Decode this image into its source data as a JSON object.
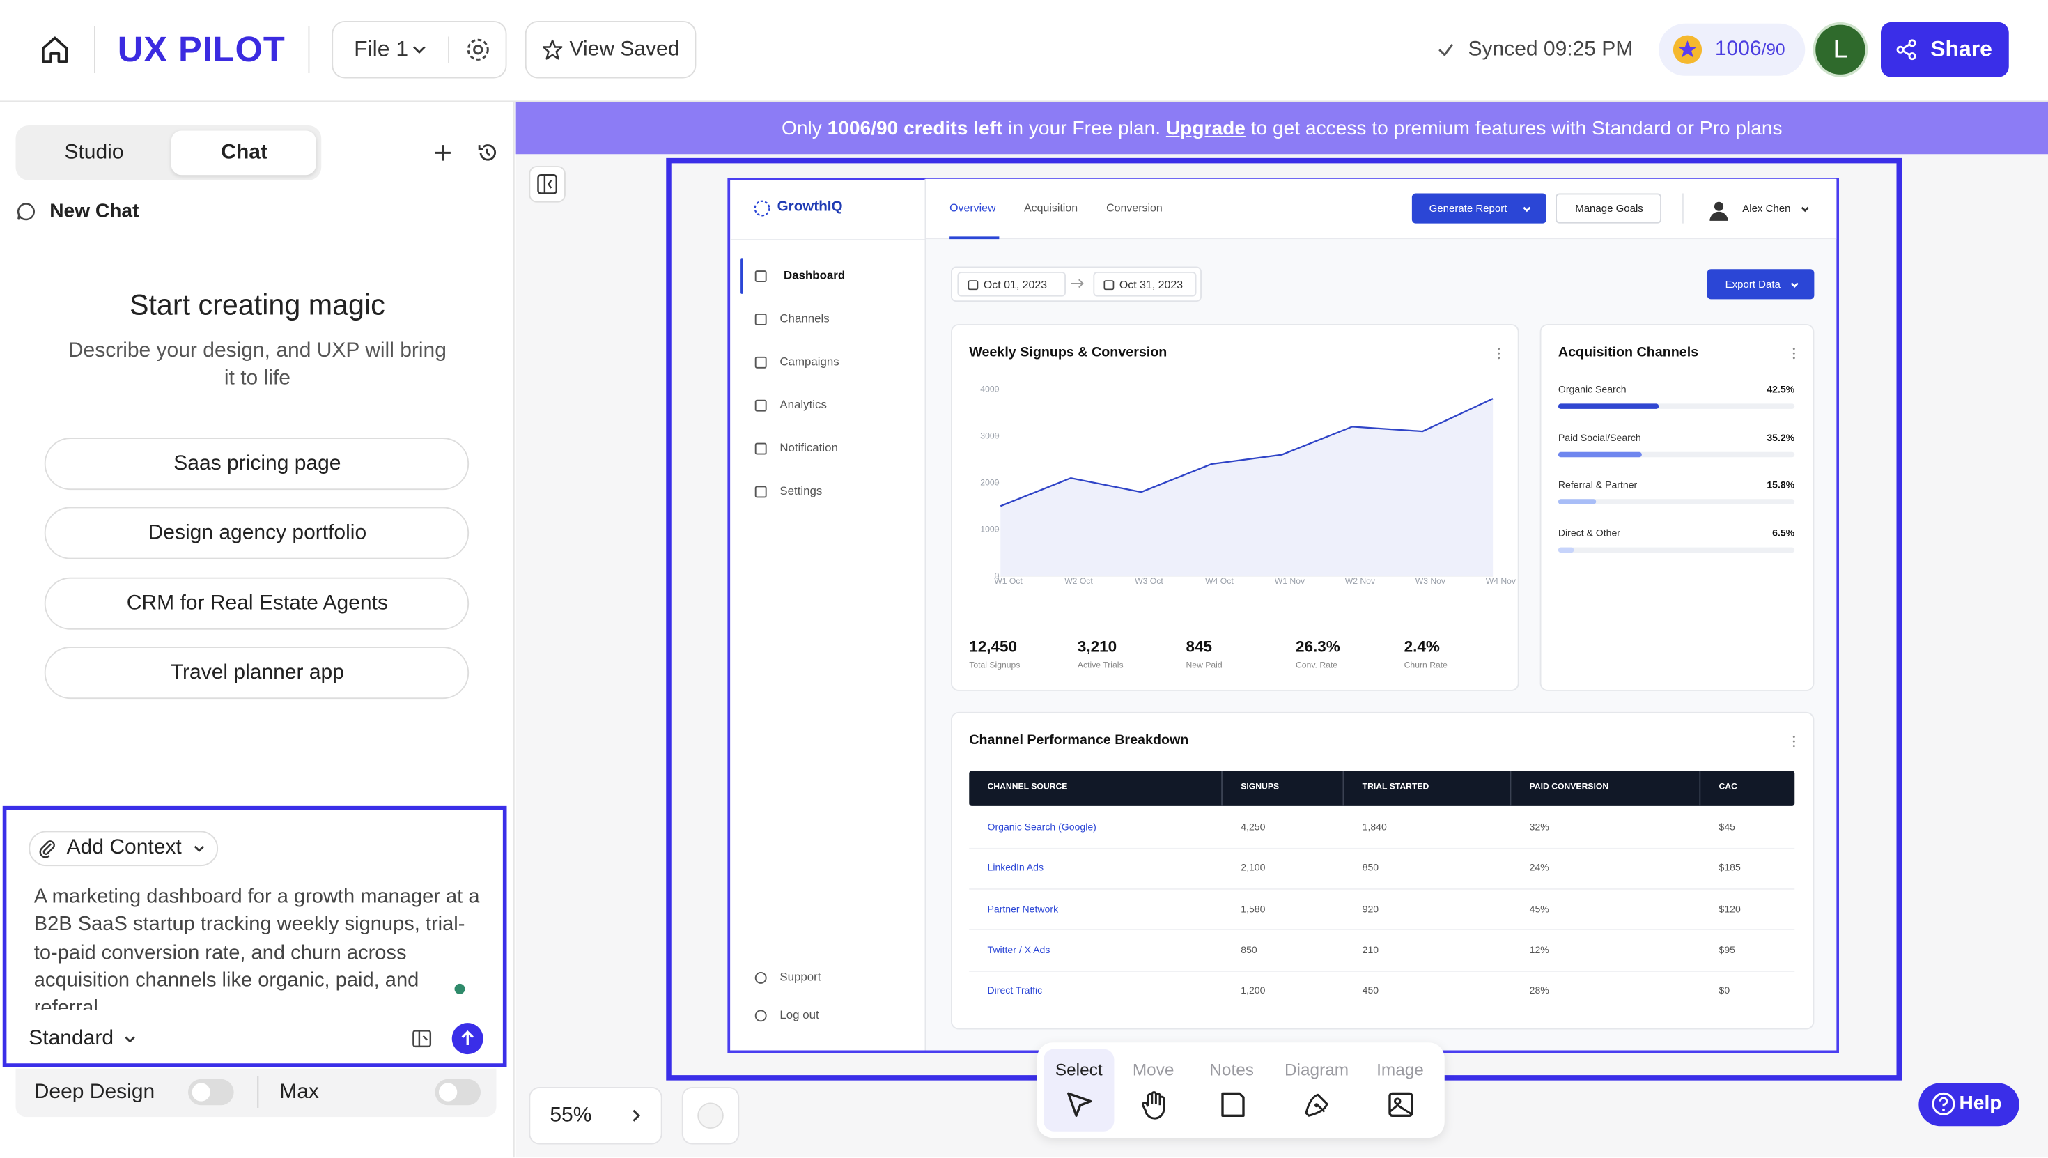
{
  "topbar": {
    "logo": "UX PILOT",
    "file": "File 1",
    "view_saved": "View Saved",
    "synced": "Synced 09:25 PM",
    "credits": "1006",
    "credits_limit": "/90",
    "avatar": "L",
    "share": "Share"
  },
  "sidebar": {
    "tabs": [
      "Studio",
      "Chat"
    ],
    "active_tab": 1,
    "new_chat": "New Chat",
    "heading": "Start creating magic",
    "subheading": "Describe your design, and UXP will bring it to life",
    "suggestions": [
      "Saas pricing page",
      "Design agency portfolio",
      "CRM for Real Estate Agents",
      "Travel planner app"
    ],
    "add_context": "Add Context",
    "prompt": "A marketing dashboard for a growth manager at a B2B SaaS startup tracking weekly signups, trial-to-paid conversion rate, and churn across acquisition channels like organic, paid, and referral",
    "mode": "Standard",
    "deep_design": "Deep Design",
    "max": "Max"
  },
  "banner": {
    "parts": [
      "Only ",
      "1006/90 credits left",
      " in your Free plan. ",
      "Upgrade",
      " to get access to premium features with Standard or Pro plans"
    ]
  },
  "canvas": {
    "zoom": "55%",
    "tools": [
      "Select",
      "Move",
      "Notes",
      "Diagram",
      "Image"
    ],
    "active_tool": 0,
    "help": "Help"
  },
  "dashboard": {
    "brand": "GrowthIQ",
    "nav": [
      "Dashboard",
      "Channels",
      "Campaigns",
      "Analytics",
      "Notification",
      "Settings"
    ],
    "active_nav": 0,
    "footer_nav": [
      "Support",
      "Log out"
    ],
    "tabs": [
      "Overview",
      "Acquisition",
      "Conversion"
    ],
    "active_tab": 0,
    "generate_report": "Generate Report",
    "manage_goals": "Manage Goals",
    "user": "Alex Chen",
    "dates": [
      "Oct 01, 2023",
      "Oct 31, 2023"
    ],
    "export": "Export Data",
    "chart": {
      "type": "line",
      "title": "Weekly Signups & Conversion",
      "categories": [
        "W1 Oct",
        "W2 Oct",
        "W3 Oct",
        "W4 Oct",
        "W1 Nov",
        "W2 Nov",
        "W3 Nov",
        "W4 Nov"
      ],
      "values": [
        1500,
        2100,
        1800,
        2400,
        2600,
        3200,
        3100,
        3800
      ],
      "ylim": [
        0,
        4000
      ],
      "yticks": [
        0,
        1000,
        2000,
        3000,
        4000
      ],
      "color": "#2f44c7"
    },
    "stats": [
      {
        "value": "12,450",
        "label": "Total Signups"
      },
      {
        "value": "3,210",
        "label": "Active Trials"
      },
      {
        "value": "845",
        "label": "New Paid"
      },
      {
        "value": "26.3%",
        "label": "Conv. Rate"
      },
      {
        "value": "2.4%",
        "label": "Churn Rate"
      }
    ],
    "acquisition": {
      "title": "Acquisition Channels",
      "names": [
        "Organic Search",
        "Paid Social/Search",
        "Referral & Partner",
        "Direct & Other"
      ],
      "values": [
        42.5,
        35.2,
        15.8,
        6.5
      ],
      "value_labels": [
        "42.5%",
        "35.2%",
        "15.8%",
        "6.5%"
      ],
      "colors": [
        "#3047d1",
        "#6f86ef",
        "#a8bdf7",
        "#c7d4fb"
      ]
    },
    "table": {
      "title": "Channel Performance Breakdown",
      "headers": [
        "CHANNEL SOURCE",
        "SIGNUPS",
        "TRIAL STARTED",
        "PAID CONVERSION",
        "CAC"
      ],
      "rows": [
        [
          "Organic Search (Google)",
          "4,250",
          "1,840",
          "32%",
          "$45"
        ],
        [
          "LinkedIn Ads",
          "2,100",
          "850",
          "24%",
          "$185"
        ],
        [
          "Partner Network",
          "1,580",
          "920",
          "45%",
          "$120"
        ],
        [
          "Twitter / X Ads",
          "850",
          "210",
          "12%",
          "$95"
        ],
        [
          "Direct Traffic",
          "1,200",
          "450",
          "28%",
          "$0"
        ]
      ]
    }
  }
}
